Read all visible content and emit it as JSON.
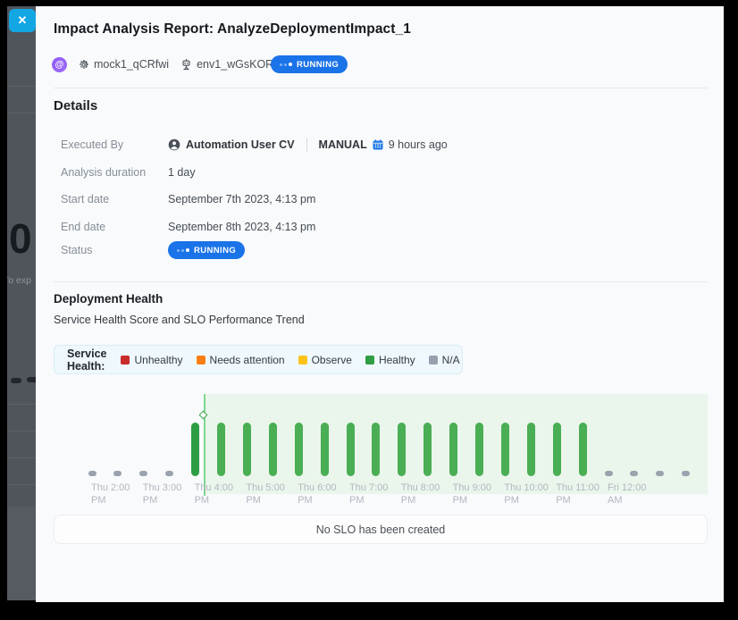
{
  "modal": {
    "title": "Impact Analysis Report: AnalyzeDeploymentImpact_1",
    "status_badge": "RUNNING",
    "meta": {
      "mock_name": "mock1_qCRfwi",
      "env_name": "env1_wGsKOR"
    }
  },
  "background": {
    "partial_number": "0",
    "partial_text": "To exp"
  },
  "details": {
    "heading": "Details",
    "labels": {
      "executed_by": "Executed By",
      "analysis_duration": "Analysis duration",
      "start_date": "Start date",
      "end_date": "End date",
      "status": "Status"
    },
    "executed_by": {
      "user": "Automation User CV",
      "trigger": "MANUAL",
      "time_ago": "9 hours ago"
    },
    "analysis_duration": "1 day",
    "start_date": "September 7th 2023, 4:13 pm",
    "end_date": "September 8th 2023, 4:13 pm",
    "status": "RUNNING"
  },
  "deployment_health": {
    "heading": "Deployment Health",
    "subtitle": "Service Health Score and SLO Performance Trend",
    "legend_label": "Service Health:",
    "no_slo_message": "No SLO has been created"
  },
  "chart_data": {
    "type": "bar",
    "title": "Service Health Score and SLO Performance Trend",
    "x_unit": "30-minute intervals",
    "legend": [
      {
        "label": "Unhealthy",
        "color": "#c92a2a"
      },
      {
        "label": "Needs attention",
        "color": "#fd7e14"
      },
      {
        "label": "Observe",
        "color": "#fcc419"
      },
      {
        "label": "Healthy",
        "color": "#2f9e44"
      },
      {
        "label": "N/A",
        "color": "#98a0ae"
      }
    ],
    "bars": [
      {
        "time": "Thu 2:00 PM",
        "status": "N/A"
      },
      {
        "time": "Thu 2:30 PM",
        "status": "N/A"
      },
      {
        "time": "Thu 3:00 PM",
        "status": "N/A"
      },
      {
        "time": "Thu 3:30 PM",
        "status": "N/A"
      },
      {
        "time": "Thu 4:00 PM",
        "status": "Healthy",
        "shade": "dark"
      },
      {
        "time": "Thu 4:30 PM",
        "status": "Healthy"
      },
      {
        "time": "Thu 5:00 PM",
        "status": "Healthy"
      },
      {
        "time": "Thu 5:30 PM",
        "status": "Healthy"
      },
      {
        "time": "Thu 6:00 PM",
        "status": "Healthy"
      },
      {
        "time": "Thu 6:30 PM",
        "status": "Healthy"
      },
      {
        "time": "Thu 7:00 PM",
        "status": "Healthy"
      },
      {
        "time": "Thu 7:30 PM",
        "status": "Healthy"
      },
      {
        "time": "Thu 8:00 PM",
        "status": "Healthy"
      },
      {
        "time": "Thu 8:30 PM",
        "status": "Healthy"
      },
      {
        "time": "Thu 9:00 PM",
        "status": "Healthy"
      },
      {
        "time": "Thu 9:30 PM",
        "status": "Healthy"
      },
      {
        "time": "Thu 10:00 PM",
        "status": "Healthy"
      },
      {
        "time": "Thu 10:30 PM",
        "status": "Healthy"
      },
      {
        "time": "Thu 11:00 PM",
        "status": "Healthy"
      },
      {
        "time": "Thu 11:30 PM",
        "status": "Healthy"
      },
      {
        "time": "Fri 12:00 AM",
        "status": "N/A"
      },
      {
        "time": "Fri 12:30 AM",
        "status": "N/A"
      },
      {
        "time": "Fri 1:00 AM",
        "status": "N/A"
      },
      {
        "time": "Fri 1:30 AM",
        "status": "N/A"
      }
    ],
    "x_ticks": [
      {
        "line1": "Thu 2:00",
        "line2": "PM",
        "bar_index": 0
      },
      {
        "line1": "Thu 3:00",
        "line2": "PM",
        "bar_index": 2
      },
      {
        "line1": "Thu 4:00",
        "line2": "PM",
        "bar_index": 4
      },
      {
        "line1": "Thu 5:00",
        "line2": "PM",
        "bar_index": 6
      },
      {
        "line1": "Thu 6:00",
        "line2": "PM",
        "bar_index": 8
      },
      {
        "line1": "Thu 7:00",
        "line2": "PM",
        "bar_index": 10
      },
      {
        "line1": "Thu 8:00",
        "line2": "PM",
        "bar_index": 12
      },
      {
        "line1": "Thu 9:00",
        "line2": "PM",
        "bar_index": 14
      },
      {
        "line1": "Thu 10:00",
        "line2": "PM",
        "bar_index": 16
      },
      {
        "line1": "Thu 11:00",
        "line2": "PM",
        "bar_index": 18
      },
      {
        "line1": "Fri 12:00",
        "line2": "AM",
        "bar_index": 20
      }
    ],
    "deployment_marker": {
      "at_bar_index": 4.35,
      "shaded_region": "from marker to right edge"
    },
    "bar_colors": {
      "healthy": "#4aae54",
      "healthy_first": "#2e9e44",
      "na": "#99a2ad",
      "region": "#eaf5eb",
      "marker_line": "#7fd68f"
    }
  },
  "colors": {
    "close_button": "#12a7e3",
    "running_badge": "#1a73e8",
    "modal_bg": "#f8fafc",
    "legend_box_bg": "#eef8fd"
  }
}
